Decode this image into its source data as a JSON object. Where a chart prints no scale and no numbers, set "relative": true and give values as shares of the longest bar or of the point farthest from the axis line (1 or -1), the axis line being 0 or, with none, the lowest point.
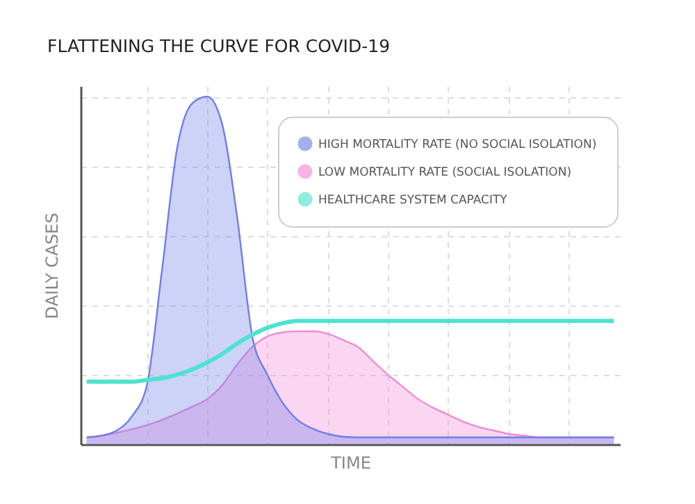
{
  "chart_data": {
    "type": "area",
    "title": "FLATTENING THE CURVE FOR COVID-19",
    "xlabel": "TIME",
    "ylabel": "DAILY CASES",
    "relative": true,
    "grid": true,
    "legend": "top right",
    "tick_labels": false,
    "categories": [
      null,
      null,
      null,
      null,
      null,
      null,
      null,
      null,
      null,
      null,
      null,
      null,
      null,
      null,
      null,
      null,
      null,
      null,
      null,
      null,
      null,
      null,
      null,
      null,
      null,
      null,
      null,
      null,
      null,
      null,
      null,
      null,
      null,
      null,
      null,
      null
    ],
    "series": [
      {
        "name": "HIGH MORTALITY RATE (NO SOCIAL ISOLATION)",
        "color": "#6f7ee8",
        "values": [
          0.02,
          0.025,
          0.04,
          0.08,
          0.17,
          0.5,
          0.85,
          0.98,
          1,
          0.92,
          0.65,
          0.31,
          0.2,
          0.12,
          0.07,
          0.045,
          0.03,
          0.022,
          0.02,
          0.02,
          0.02,
          0.02,
          0.02,
          0.02,
          0.02,
          0.02,
          0.02,
          0.02,
          0.02,
          0.02,
          0.02,
          0.02,
          0.02,
          0.02,
          0.02,
          0.02
        ]
      },
      {
        "name": "LOW MORTALITY RATE (SOCIAL ISOLATION)",
        "color": "#f08ad6",
        "values": [
          0.02,
          0.025,
          0.033,
          0.043,
          0.055,
          0.07,
          0.088,
          0.108,
          0.13,
          0.17,
          0.23,
          0.28,
          0.31,
          0.322,
          0.325,
          0.325,
          0.318,
          0.3,
          0.28,
          0.24,
          0.2,
          0.165,
          0.13,
          0.105,
          0.085,
          0.065,
          0.05,
          0.04,
          0.03,
          0.025,
          0.02,
          0.02,
          0.02,
          0.02,
          0.02,
          0.02
        ]
      },
      {
        "name": "HEALTHCARE SYSTEM CAPACITY",
        "type": "line",
        "color": "#4de3d0",
        "values": [
          0.18,
          0.18,
          0.18,
          0.18,
          0.185,
          0.19,
          0.2,
          0.215,
          0.235,
          0.26,
          0.29,
          0.315,
          0.335,
          0.348,
          0.355,
          0.355,
          0.355,
          0.355,
          0.355,
          0.355,
          0.355,
          0.355,
          0.355,
          0.355,
          0.355,
          0.355,
          0.355,
          0.355,
          0.355,
          0.355,
          0.355,
          0.355,
          0.355,
          0.355,
          0.355,
          0.355
        ]
      }
    ]
  }
}
